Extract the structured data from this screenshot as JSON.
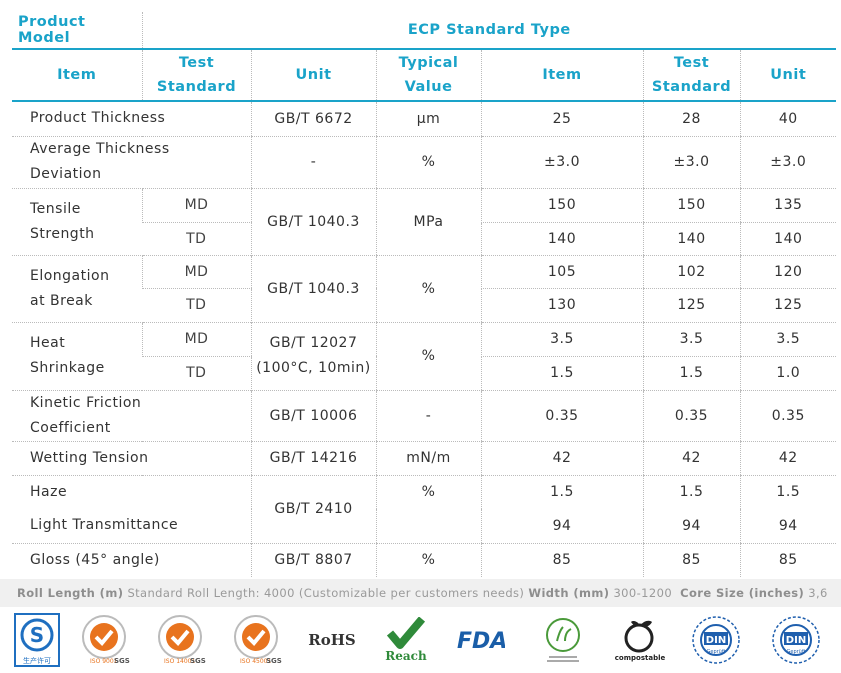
{
  "header": {
    "product_model": "Product Model",
    "product_type": "ECP Standard Type"
  },
  "columns": {
    "item": "Item",
    "test_standard_1": "Test",
    "test_standard_2": "Standard",
    "unit": "Unit",
    "typical_value_1": "Typical",
    "typical_value_2": "Value",
    "item2": "Item",
    "test_standard2_1": "Test",
    "test_standard2_2": "Standard",
    "unit2": "Unit"
  },
  "rows": {
    "thickness": {
      "item": "Product Thickness",
      "std": "GB/T 6672",
      "unit": "μm",
      "v1": "25",
      "v2": "28",
      "v3": "40"
    },
    "deviation": {
      "item1": "Average Thickness",
      "item2": "Deviation",
      "std": "-",
      "unit": "%",
      "v1": "±3.0",
      "v2": "±3.0",
      "v3": "±3.0"
    },
    "tensile": {
      "item1": "Tensile",
      "item2": "Strength",
      "md": "MD",
      "td": "TD",
      "std": "GB/T 1040.3",
      "unit": "MPa",
      "md_v1": "150",
      "md_v2": "150",
      "md_v3": "135",
      "td_v1": "140",
      "td_v2": "140",
      "td_v3": "140"
    },
    "elongation": {
      "item1": "Elongation",
      "item2": "at Break",
      "md": "MD",
      "td": "TD",
      "std": "GB/T 1040.3",
      "unit": "%",
      "md_v1": "105",
      "md_v2": "102",
      "md_v3": "120",
      "td_v1": "130",
      "td_v2": "125",
      "td_v3": "125"
    },
    "shrinkage": {
      "item1": "Heat",
      "item2": "Shrinkage",
      "md": "MD",
      "td": "TD",
      "std1": "GB/T 12027",
      "std2": "(100°C, 10min)",
      "unit": "%",
      "md_v1": "3.5",
      "md_v2": "3.5",
      "md_v3": "3.5",
      "td_v1": "1.5",
      "td_v2": "1.5",
      "td_v3": "1.0"
    },
    "friction": {
      "item1": "Kinetic Friction",
      "item2": "Coefficient",
      "std": "GB/T 10006",
      "unit": "-",
      "v1": "0.35",
      "v2": "0.35",
      "v3": "0.35"
    },
    "wetting": {
      "item": "Wetting Tension",
      "std": "GB/T 14216",
      "unit": "mN/m",
      "v1": "42",
      "v2": "42",
      "v3": "42"
    },
    "haze": {
      "item": "Haze",
      "std": "GB/T 2410",
      "unit": "%",
      "v1": "1.5",
      "v2": "1.5",
      "v3": "1.5"
    },
    "light": {
      "item": "Light Transmittance",
      "unit": "",
      "v1": "94",
      "v2": "94",
      "v3": "94"
    },
    "gloss": {
      "item": "Gloss (45° angle)",
      "std": "GB/T 8807",
      "unit": "%",
      "v1": "85",
      "v2": "85",
      "v3": "85"
    }
  },
  "footer": {
    "roll_length_label": "Roll Length (m)",
    "roll_length_value": "Standard Roll Length: 4000 (Customizable per customers needs)",
    "width_label": "Width (mm)",
    "width_value": "300-1200",
    "core_label": "Core Size (inches)",
    "core_value": "3,6"
  },
  "logos": {
    "qs_text": "生产许可",
    "sgs": "SGS",
    "iso1": "ISO 9001",
    "iso2": "ISO 14001",
    "iso3": "ISO 45001",
    "rohs": "RoHS",
    "reach": "Reach",
    "fda": "FDA",
    "compostable": "compostable",
    "din": "DIN",
    "geprueft": "Geprüft"
  },
  "colors": {
    "accent": "#1aa3c9",
    "footer_bg": "#f0f0f0",
    "sgs_orange": "#e8731e",
    "reach_green": "#2f8a3a",
    "fda_blue": "#1a5ea8",
    "din_blue": "#1f5fae"
  }
}
